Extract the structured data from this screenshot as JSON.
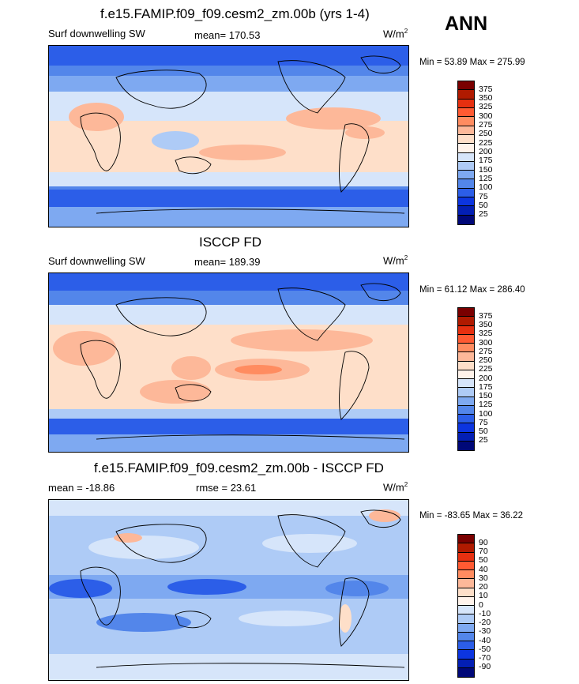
{
  "season": "ANN",
  "units_label": "W/m",
  "units_superscript": "2",
  "colors": {
    "abs": [
      "#7a0000",
      "#b01a00",
      "#e63010",
      "#ff5a32",
      "#ff8c60",
      "#fdb899",
      "#fedfc9",
      "#fff3eb",
      "#d6e5fa",
      "#aecbf6",
      "#7ea9f1",
      "#5386ea",
      "#2c5ee8",
      "#0c35e0",
      "#031fb4",
      "#000878"
    ],
    "diff": [
      "#7a0000",
      "#b01a00",
      "#e63010",
      "#ff5a32",
      "#ff8c60",
      "#fdb899",
      "#fedfc9",
      "#fff3eb",
      "#d6e5fa",
      "#aecbf6",
      "#7ea9f1",
      "#5386ea",
      "#2c5ee8",
      "#0c35e0",
      "#031fb4",
      "#000878"
    ]
  },
  "colorbar_abs_labels": [
    "375",
    "350",
    "325",
    "300",
    "275",
    "250",
    "225",
    "200",
    "175",
    "150",
    "125",
    "100",
    "75",
    "50",
    "25"
  ],
  "colorbar_diff_labels": [
    "90",
    "70",
    "50",
    "40",
    "30",
    "20",
    "10",
    "0",
    "-10",
    "-20",
    "-30",
    "-40",
    "-50",
    "-70",
    "-90"
  ],
  "panels": [
    {
      "title": "f.e15.FAMIP.f09_f09.cesm2_zm.00b (yrs 1-4)",
      "left_label": "Surf downwelling SW",
      "stat_label": "mean= 170.53",
      "minmax": "Min =  53.89 Max = 275.99",
      "colorbar": "abs"
    },
    {
      "title": "ISCCP FD",
      "left_label": "Surf downwelling SW",
      "stat_label": "mean= 189.39",
      "minmax": "Min =  61.12 Max = 286.40",
      "colorbar": "abs"
    },
    {
      "title": "f.e15.FAMIP.f09_f09.cesm2_zm.00b - ISCCP FD",
      "left_label": "mean = -18.86",
      "stat_label": "rmse =  23.61",
      "minmax": "Min = -83.65 Max =  36.22",
      "colorbar": "diff"
    }
  ]
}
